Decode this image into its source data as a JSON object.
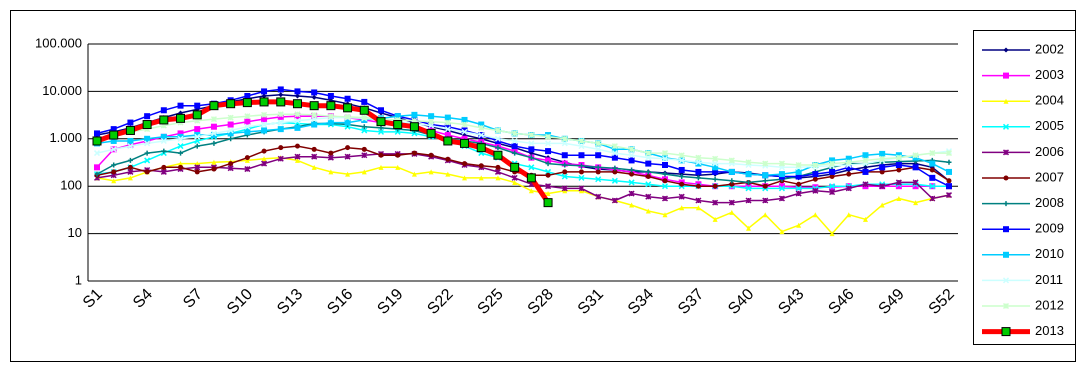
{
  "chart_data": {
    "type": "line",
    "yscale": "log",
    "grid": true,
    "legend": "right",
    "categories": [
      "S1",
      null,
      null,
      "S4",
      null,
      null,
      "S7",
      null,
      null,
      "S10",
      null,
      null,
      "S13",
      null,
      null,
      "S16",
      null,
      null,
      "S19",
      null,
      null,
      "S22",
      null,
      null,
      "S25",
      null,
      null,
      "S28",
      null,
      null,
      "S31",
      null,
      null,
      "S34",
      null,
      null,
      "S37",
      null,
      null,
      "S40",
      null,
      null,
      "S43",
      null,
      null,
      "S46",
      null,
      null,
      "S49",
      null,
      null,
      "S52"
    ],
    "ylim": [
      1,
      100000
    ],
    "yticks": [
      1,
      10,
      100,
      {
        "value": 1000,
        "label": "1.000"
      },
      {
        "value": 10000,
        "label": "10.000"
      },
      {
        "value": 100000,
        "label": "100.000"
      }
    ],
    "series": [
      {
        "name": "2002",
        "color": "#000080",
        "marker": "diamond",
        "values": [
          1200,
          1400,
          1700,
          2200,
          2800,
          3500,
          4200,
          5000,
          6000,
          7000,
          8000,
          8500,
          8000,
          7500,
          6500,
          5500,
          4500,
          3500,
          2800,
          2200,
          1800,
          1500,
          1200,
          1000,
          800,
          650,
          500,
          400,
          320,
          260,
          230,
          220,
          200,
          200,
          190,
          180,
          170,
          180,
          200,
          190,
          170,
          160,
          150,
          160,
          180,
          220,
          250,
          280,
          300,
          300,
          250,
          130
        ]
      },
      {
        "name": "2003",
        "color": "#ff00ff",
        "marker": "square",
        "values": [
          250,
          600,
          750,
          900,
          1100,
          1300,
          1600,
          1800,
          2000,
          2300,
          2600,
          2900,
          3000,
          3000,
          3000,
          2800,
          2500,
          2200,
          2000,
          1700,
          1500,
          1200,
          1000,
          850,
          700,
          550,
          400,
          350,
          300,
          280,
          250,
          220,
          200,
          170,
          140,
          120,
          110,
          100,
          100,
          100,
          100,
          100,
          95,
          95,
          95,
          100,
          100,
          100,
          100,
          100,
          100,
          100
        ]
      },
      {
        "name": "2004",
        "color": "#ffff00",
        "marker": "triangle",
        "values": [
          150,
          130,
          150,
          200,
          250,
          300,
          300,
          320,
          330,
          350,
          380,
          400,
          350,
          250,
          200,
          180,
          200,
          250,
          250,
          180,
          200,
          180,
          150,
          150,
          150,
          120,
          80,
          70,
          80,
          80,
          60,
          50,
          40,
          30,
          25,
          35,
          35,
          20,
          28,
          13,
          25,
          11,
          15,
          25,
          10,
          25,
          20,
          40,
          55,
          45,
          55,
          65
        ]
      },
      {
        "name": "2005",
        "color": "#00ffff",
        "marker": "x",
        "values": [
          180,
          200,
          250,
          350,
          500,
          700,
          900,
          1100,
          1300,
          1600,
          2000,
          2200,
          2100,
          2000,
          2000,
          1800,
          1500,
          1400,
          1400,
          1300,
          1100,
          900,
          700,
          500,
          400,
          300,
          250,
          200,
          160,
          150,
          140,
          130,
          120,
          110,
          100,
          100,
          100,
          100,
          100,
          90,
          90,
          90,
          90,
          90,
          100,
          100,
          110,
          110,
          110,
          110,
          100,
          100
        ]
      },
      {
        "name": "2006",
        "color": "#800080",
        "marker": "star",
        "values": [
          150,
          170,
          200,
          220,
          200,
          230,
          250,
          250,
          240,
          230,
          300,
          380,
          420,
          420,
          400,
          420,
          450,
          480,
          480,
          480,
          420,
          350,
          280,
          250,
          200,
          150,
          110,
          100,
          90,
          90,
          60,
          50,
          70,
          60,
          55,
          60,
          50,
          45,
          45,
          50,
          50,
          55,
          70,
          80,
          75,
          90,
          110,
          100,
          120,
          120,
          55,
          65
        ]
      },
      {
        "name": "2007",
        "color": "#800000",
        "marker": "circle",
        "values": [
          170,
          200,
          250,
          200,
          250,
          250,
          200,
          230,
          300,
          400,
          550,
          650,
          700,
          600,
          500,
          650,
          600,
          450,
          450,
          500,
          450,
          370,
          300,
          270,
          250,
          200,
          170,
          170,
          200,
          200,
          200,
          200,
          180,
          160,
          130,
          110,
          100,
          100,
          110,
          120,
          100,
          130,
          110,
          140,
          160,
          180,
          200,
          200,
          220,
          250,
          220,
          130
        ]
      },
      {
        "name": "2008",
        "color": "#008080",
        "marker": "plus",
        "values": [
          180,
          280,
          350,
          500,
          550,
          500,
          700,
          800,
          1000,
          1200,
          1400,
          1600,
          1800,
          2100,
          2100,
          2000,
          1800,
          1700,
          1600,
          1500,
          1200,
          1000,
          900,
          800,
          650,
          500,
          400,
          300,
          280,
          270,
          250,
          240,
          220,
          200,
          180,
          160,
          150,
          140,
          130,
          120,
          130,
          140,
          160,
          200,
          250,
          300,
          300,
          320,
          330,
          340,
          350,
          320
        ]
      },
      {
        "name": "2009",
        "color": "#0000ff",
        "marker": "square",
        "values": [
          1300,
          1600,
          2200,
          3000,
          4000,
          5000,
          5000,
          5500,
          6500,
          8000,
          10000,
          11000,
          10000,
          9500,
          8000,
          7000,
          6000,
          4000,
          3000,
          2500,
          2000,
          1800,
          1500,
          1200,
          900,
          700,
          600,
          550,
          450,
          450,
          450,
          400,
          350,
          300,
          280,
          220,
          200,
          200,
          200,
          180,
          170,
          160,
          160,
          180,
          200,
          250,
          200,
          250,
          280,
          250,
          150,
          100
        ]
      },
      {
        "name": "2010",
        "color": "#00ccff",
        "marker": "square",
        "values": [
          800,
          900,
          900,
          1000,
          1100,
          1100,
          1200,
          1200,
          1300,
          1400,
          1500,
          1600,
          1700,
          2000,
          2200,
          2200,
          2500,
          2700,
          3000,
          3200,
          3000,
          2800,
          2500,
          2000,
          1500,
          1300,
          1200,
          1200,
          1000,
          900,
          800,
          600,
          600,
          500,
          400,
          350,
          300,
          250,
          200,
          180,
          170,
          180,
          200,
          280,
          350,
          380,
          450,
          480,
          450,
          400,
          300,
          200
        ]
      },
      {
        "name": "2011",
        "color": "#ccffff",
        "marker": "x",
        "values": [
          500,
          600,
          700,
          800,
          900,
          1000,
          1100,
          1300,
          1500,
          1800,
          2000,
          2200,
          2400,
          2600,
          2800,
          2800,
          2700,
          2500,
          2300,
          2100,
          1900,
          1600,
          1400,
          1200,
          1000,
          900,
          800,
          800,
          800,
          700,
          600,
          500,
          450,
          400,
          380,
          350,
          320,
          300,
          300,
          280,
          270,
          250,
          250,
          260,
          270,
          280,
          300,
          350,
          400,
          450,
          500,
          550
        ]
      },
      {
        "name": "2012",
        "color": "#ccffcc",
        "marker": "star",
        "values": [
          900,
          1100,
          1400,
          1600,
          1900,
          2200,
          2400,
          2600,
          2800,
          3000,
          3200,
          3300,
          3300,
          3200,
          3000,
          2900,
          2800,
          2600,
          2500,
          2400,
          2300,
          2200,
          2000,
          1700,
          1500,
          1300,
          1200,
          1100,
          1000,
          900,
          800,
          700,
          600,
          500,
          500,
          450,
          400,
          380,
          350,
          320,
          300,
          300,
          280,
          280,
          300,
          320,
          350,
          380,
          400,
          450,
          500,
          500
        ]
      },
      {
        "name": "2013",
        "color": "#ff0000",
        "marker": "square",
        "marker_color": "#00cc00",
        "values": [
          900,
          1200,
          1500,
          2000,
          2500,
          2700,
          3200,
          5000,
          5500,
          5800,
          6000,
          6000,
          5500,
          5000,
          5000,
          4500,
          4000,
          2300,
          2000,
          1800,
          1300,
          900,
          800,
          650,
          450,
          250,
          150,
          45,
          null,
          null,
          null,
          null,
          null,
          null,
          null,
          null,
          null,
          null,
          null,
          null,
          null,
          null,
          null,
          null,
          null,
          null,
          null,
          null,
          null,
          null,
          null,
          null
        ]
      }
    ]
  }
}
